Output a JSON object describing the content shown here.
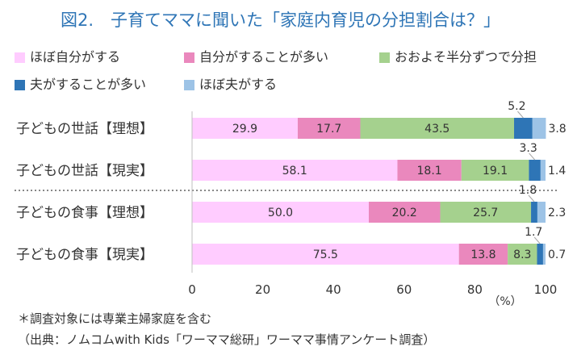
{
  "chart_data": {
    "type": "bar",
    "stacked": true,
    "orientation": "horizontal",
    "title": "図2.　子育てママに聞いた「家庭内育児の分担割合は？」",
    "categories": [
      "子どもの世話【理想】",
      "子どもの世話【現実】",
      "子どもの食事【理想】",
      "子どもの食事【現実】"
    ],
    "series": [
      {
        "name": "ほぼ自分がする",
        "color": "#ffccff",
        "values": [
          29.9,
          58.1,
          50.0,
          75.5
        ]
      },
      {
        "name": "自分がすることが多い",
        "color": "#ea88bd",
        "values": [
          17.7,
          18.1,
          20.2,
          13.8
        ]
      },
      {
        "name": "おおよそ半分ずつで分担",
        "color": "#a5d18e",
        "values": [
          43.5,
          19.1,
          25.7,
          8.3
        ]
      },
      {
        "name": "夫がすることが多い",
        "color": "#2e75b6",
        "values": [
          5.2,
          3.3,
          1.8,
          1.7
        ]
      },
      {
        "name": "ほぼ夫がする",
        "color": "#9dc3e6",
        "values": [
          3.8,
          1.4,
          2.3,
          0.7
        ]
      }
    ],
    "xlim": [
      0,
      100
    ],
    "xticks": [
      "0",
      "20",
      "40",
      "60",
      "80",
      "100"
    ],
    "xunit": "（%）",
    "legend_position": "top",
    "grid": false,
    "group_separator": "dotted line between 世話 and 食事 rows"
  },
  "notes": {
    "footnote": "＊調査対象には専業主婦家庭を含む",
    "source": "（出典：ノムコムwith Kids「ワーママ総研」ワーママ事情アンケート調査）"
  },
  "colors": {
    "title": "#2e75b6",
    "text": "#333333",
    "axis": "#bfbfbf"
  }
}
